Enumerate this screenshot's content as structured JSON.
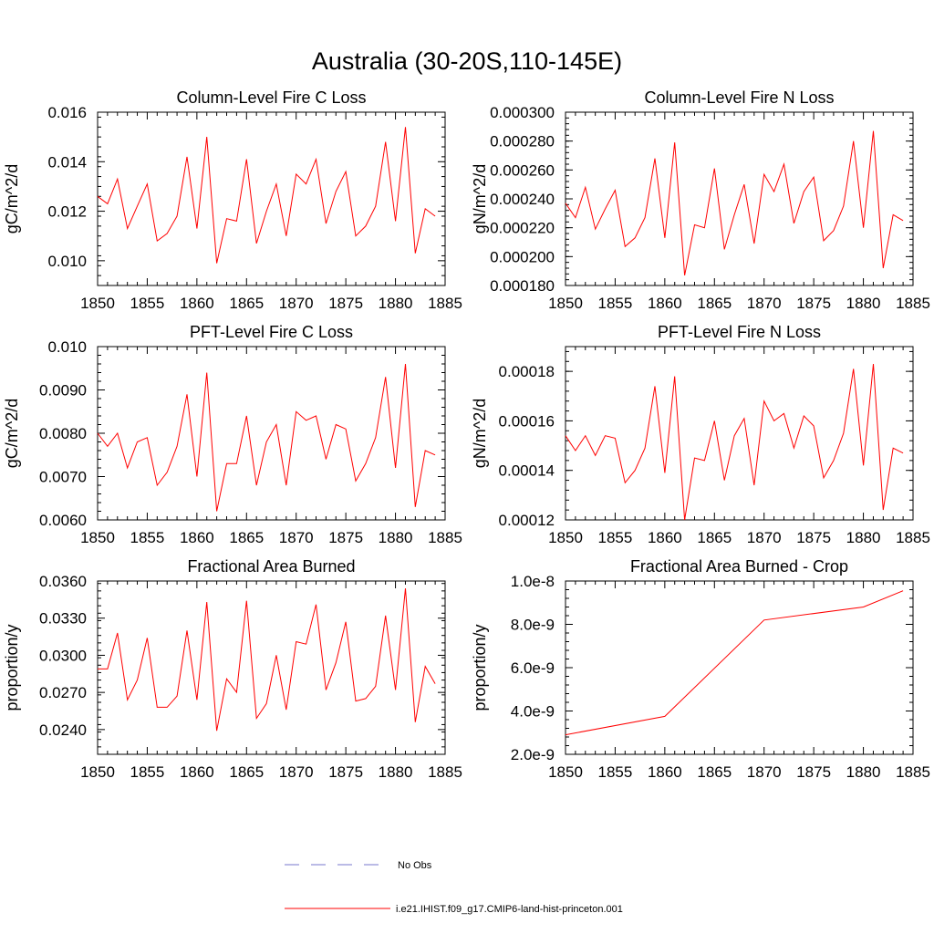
{
  "page_title": "Australia (30-20S,110-145E)",
  "colors": {
    "model_line": "#ff0000",
    "obs_line": "#7777cc",
    "axis": "#000000"
  },
  "legend": {
    "obs_label": "No Obs",
    "model_label": "i.e21.IHIST.f09_g17.CMIP6-land-hist-princeton.001"
  },
  "chart_data": [
    {
      "type": "line",
      "title": "Column-Level Fire C Loss",
      "ylabel": "gC/m^2/d",
      "xlim": [
        1850,
        1885
      ],
      "ylim": [
        0.009,
        0.016
      ],
      "xticks": [
        1850,
        1855,
        1860,
        1865,
        1870,
        1875,
        1880,
        1885
      ],
      "xtick_labels": [
        "1850",
        "1855",
        "1860",
        "1865",
        "1870",
        "1875",
        "1880",
        "1885"
      ],
      "yticks": [
        0.01,
        0.012,
        0.014,
        0.016
      ],
      "ytick_labels": [
        "0.010",
        "0.012",
        "0.014",
        "0.016"
      ],
      "series": [
        {
          "x": [
            1850,
            1851,
            1852,
            1853,
            1854,
            1855,
            1856,
            1857,
            1858,
            1859,
            1860,
            1861,
            1862,
            1863,
            1864,
            1865,
            1866,
            1867,
            1868,
            1869,
            1870,
            1871,
            1872,
            1873,
            1874,
            1875,
            1876,
            1877,
            1878,
            1879,
            1880,
            1881,
            1882,
            1883,
            1884
          ],
          "values": [
            0.0126,
            0.0123,
            0.0133,
            0.0113,
            0.0122,
            0.0131,
            0.0108,
            0.0111,
            0.0118,
            0.0142,
            0.0113,
            0.015,
            0.0099,
            0.0117,
            0.0116,
            0.0141,
            0.0107,
            0.012,
            0.0131,
            0.011,
            0.0135,
            0.0131,
            0.0141,
            0.0115,
            0.0128,
            0.0136,
            0.011,
            0.0114,
            0.0122,
            0.0148,
            0.0116,
            0.0154,
            0.0103,
            0.0121,
            0.0118
          ]
        }
      ]
    },
    {
      "type": "line",
      "title": "Column-Level Fire N Loss",
      "ylabel": "gN/m^2/d",
      "xlim": [
        1850,
        1885
      ],
      "ylim": [
        0.00018,
        0.0003
      ],
      "xticks": [
        1850,
        1855,
        1860,
        1865,
        1870,
        1875,
        1880,
        1885
      ],
      "xtick_labels": [
        "1850",
        "1855",
        "1860",
        "1865",
        "1870",
        "1875",
        "1880",
        "1885"
      ],
      "yticks": [
        0.00018,
        0.0002,
        0.00022,
        0.00024,
        0.00026,
        0.00028,
        0.0003
      ],
      "ytick_labels": [
        "0.000180",
        "0.000200",
        "0.000220",
        "0.000240",
        "0.000260",
        "0.000280",
        "0.000300"
      ],
      "series": [
        {
          "x": [
            1850,
            1851,
            1852,
            1853,
            1854,
            1855,
            1856,
            1857,
            1858,
            1859,
            1860,
            1861,
            1862,
            1863,
            1864,
            1865,
            1866,
            1867,
            1868,
            1869,
            1870,
            1871,
            1872,
            1873,
            1874,
            1875,
            1876,
            1877,
            1878,
            1879,
            1880,
            1881,
            1882,
            1883,
            1884
          ],
          "values": [
            0.000237,
            0.000227,
            0.000248,
            0.000219,
            0.000233,
            0.000246,
            0.000207,
            0.000213,
            0.000227,
            0.000268,
            0.000213,
            0.000279,
            0.000187,
            0.000222,
            0.00022,
            0.000261,
            0.000205,
            0.000229,
            0.00025,
            0.000209,
            0.000257,
            0.000245,
            0.000264,
            0.000223,
            0.000245,
            0.000255,
            0.000211,
            0.000218,
            0.000235,
            0.00028,
            0.00022,
            0.000287,
            0.000192,
            0.000229,
            0.000225
          ]
        }
      ]
    },
    {
      "type": "line",
      "title": "PFT-Level Fire C Loss",
      "ylabel": "gC/m^2/d",
      "xlim": [
        1850,
        1885
      ],
      "ylim": [
        0.006,
        0.01
      ],
      "xticks": [
        1850,
        1855,
        1860,
        1865,
        1870,
        1875,
        1880,
        1885
      ],
      "xtick_labels": [
        "1850",
        "1855",
        "1860",
        "1865",
        "1870",
        "1875",
        "1880",
        "1885"
      ],
      "yticks": [
        0.006,
        0.007,
        0.008,
        0.009,
        0.01
      ],
      "ytick_labels": [
        "0.0060",
        "0.0070",
        "0.0080",
        "0.0090",
        "0.010"
      ],
      "series": [
        {
          "x": [
            1850,
            1851,
            1852,
            1853,
            1854,
            1855,
            1856,
            1857,
            1858,
            1859,
            1860,
            1861,
            1862,
            1863,
            1864,
            1865,
            1866,
            1867,
            1868,
            1869,
            1870,
            1871,
            1872,
            1873,
            1874,
            1875,
            1876,
            1877,
            1878,
            1879,
            1880,
            1881,
            1882,
            1883,
            1884
          ],
          "values": [
            0.008,
            0.0077,
            0.008,
            0.0072,
            0.0078,
            0.0079,
            0.0068,
            0.0071,
            0.0077,
            0.0089,
            0.007,
            0.0094,
            0.0062,
            0.0073,
            0.0073,
            0.0084,
            0.0068,
            0.0078,
            0.0082,
            0.0068,
            0.0085,
            0.0083,
            0.0084,
            0.0074,
            0.0082,
            0.0081,
            0.0069,
            0.0073,
            0.0079,
            0.0093,
            0.0072,
            0.0096,
            0.0063,
            0.0076,
            0.0075
          ]
        }
      ]
    },
    {
      "type": "line",
      "title": "PFT-Level Fire N Loss",
      "ylabel": "gN/m^2/d",
      "xlim": [
        1850,
        1885
      ],
      "ylim": [
        0.00012,
        0.00019
      ],
      "xticks": [
        1850,
        1855,
        1860,
        1865,
        1870,
        1875,
        1880,
        1885
      ],
      "xtick_labels": [
        "1850",
        "1855",
        "1860",
        "1865",
        "1870",
        "1875",
        "1880",
        "1885"
      ],
      "yticks": [
        0.00012,
        0.00014,
        0.00016,
        0.00018
      ],
      "ytick_labels": [
        "0.00012",
        "0.00014",
        "0.00016",
        "0.00018"
      ],
      "series": [
        {
          "x": [
            1850,
            1851,
            1852,
            1853,
            1854,
            1855,
            1856,
            1857,
            1858,
            1859,
            1860,
            1861,
            1862,
            1863,
            1864,
            1865,
            1866,
            1867,
            1868,
            1869,
            1870,
            1871,
            1872,
            1873,
            1874,
            1875,
            1876,
            1877,
            1878,
            1879,
            1880,
            1881,
            1882,
            1883,
            1884
          ],
          "values": [
            0.000154,
            0.000148,
            0.000154,
            0.000146,
            0.000154,
            0.000153,
            0.000135,
            0.00014,
            0.000149,
            0.000174,
            0.000139,
            0.000178,
            0.00012,
            0.000145,
            0.000144,
            0.00016,
            0.000136,
            0.000154,
            0.000161,
            0.000134,
            0.000168,
            0.00016,
            0.000163,
            0.000149,
            0.000162,
            0.000158,
            0.000137,
            0.000144,
            0.000155,
            0.000181,
            0.000142,
            0.000183,
            0.000124,
            0.000149,
            0.000147
          ]
        }
      ]
    },
    {
      "type": "line",
      "title": "Fractional Area Burned",
      "ylabel": "proportion/y",
      "xlim": [
        1850,
        1885
      ],
      "ylim": [
        0.022,
        0.036
      ],
      "xticks": [
        1850,
        1855,
        1860,
        1865,
        1870,
        1875,
        1880,
        1885
      ],
      "xtick_labels": [
        "1850",
        "1855",
        "1860",
        "1865",
        "1870",
        "1875",
        "1880",
        "1885"
      ],
      "yticks": [
        0.024,
        0.027,
        0.03,
        0.033,
        0.036
      ],
      "ytick_labels": [
        "0.0240",
        "0.0270",
        "0.0300",
        "0.0330",
        "0.0360"
      ],
      "series": [
        {
          "x": [
            1850,
            1851,
            1852,
            1853,
            1854,
            1855,
            1856,
            1857,
            1858,
            1859,
            1860,
            1861,
            1862,
            1863,
            1864,
            1865,
            1866,
            1867,
            1868,
            1869,
            1870,
            1871,
            1872,
            1873,
            1874,
            1875,
            1876,
            1877,
            1878,
            1879,
            1880,
            1881,
            1882,
            1883,
            1884
          ],
          "values": [
            0.0289,
            0.0289,
            0.0318,
            0.0264,
            0.028,
            0.0314,
            0.0258,
            0.0258,
            0.0267,
            0.032,
            0.0264,
            0.0343,
            0.0239,
            0.0281,
            0.027,
            0.0344,
            0.0249,
            0.0261,
            0.03,
            0.0256,
            0.0311,
            0.0309,
            0.0341,
            0.0272,
            0.0294,
            0.0327,
            0.0263,
            0.0265,
            0.0275,
            0.0332,
            0.0272,
            0.0354,
            0.0246,
            0.0291,
            0.0277
          ]
        }
      ]
    },
    {
      "type": "line",
      "title": "Fractional Area Burned - Crop",
      "ylabel": "proportion/y",
      "xlim": [
        1850,
        1885
      ],
      "ylim": [
        2e-09,
        1e-08
      ],
      "xticks": [
        1850,
        1855,
        1860,
        1865,
        1870,
        1875,
        1880,
        1885
      ],
      "xtick_labels": [
        "1850",
        "1855",
        "1860",
        "1865",
        "1870",
        "1875",
        "1880",
        "1885"
      ],
      "yticks": [
        2e-09,
        4e-09,
        6e-09,
        8e-09,
        1e-08
      ],
      "ytick_labels": [
        "2.0e-9",
        "4.0e-9",
        "6.0e-9",
        "8.0e-9",
        "1.0e-8"
      ],
      "series": [
        {
          "x": [
            1850,
            1860,
            1870,
            1880,
            1884
          ],
          "values": [
            2.9e-09,
            3.75e-09,
            8.2e-09,
            8.8e-09,
            9.55e-09
          ]
        }
      ]
    }
  ]
}
